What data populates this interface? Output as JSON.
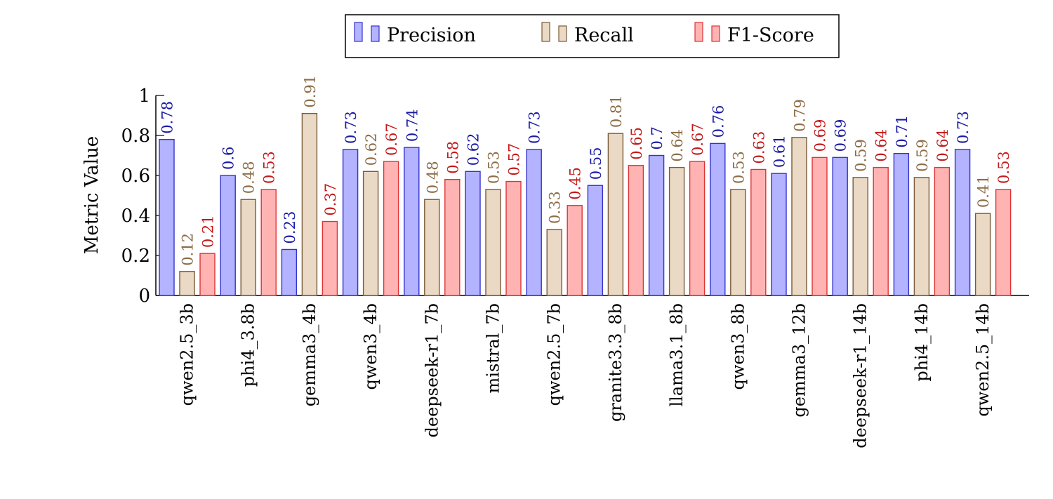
{
  "chart_data": {
    "type": "bar",
    "xlabel": "",
    "ylabel": "Metric Value",
    "ylim": [
      0,
      1
    ],
    "yticks": [
      "0",
      "0.2",
      "0.4",
      "0.6",
      "0.8",
      "1"
    ],
    "legend_position": "top-center",
    "grid": false,
    "categories": [
      "qwen2.5_3b",
      "phi4_3.8b",
      "gemma3_4b",
      "qwen3_4b",
      "deepseek-r1_7b",
      "mistral_7b",
      "qwen2.5_7b",
      "granite3.3_8b",
      "llama3.1_8b",
      "qwen3_8b",
      "gemma3_12b",
      "deepseek-r1_14b",
      "phi4_14b",
      "qwen2.5_14b"
    ],
    "series": [
      {
        "name": "Precision",
        "fill": "#b3b3ff",
        "stroke": "#3333cc",
        "label_color": "#1a1aa6",
        "values": [
          0.78,
          0.6,
          0.23,
          0.73,
          0.74,
          0.62,
          0.73,
          0.55,
          0.7,
          0.76,
          0.61,
          0.69,
          0.71,
          0.73
        ],
        "labels": [
          "0.78",
          "0.6",
          "0.23",
          "0.73",
          "0.74",
          "0.62",
          "0.73",
          "0.55",
          "0.7",
          "0.76",
          "0.61",
          "0.69",
          "0.71",
          "0.73"
        ]
      },
      {
        "name": "Recall",
        "fill": "#ead9c4",
        "stroke": "#7a5a3a",
        "label_color": "#8c6d46",
        "values": [
          0.12,
          0.48,
          0.91,
          0.62,
          0.48,
          0.53,
          0.33,
          0.81,
          0.64,
          0.53,
          0.79,
          0.59,
          0.59,
          0.41
        ],
        "labels": [
          "0.12",
          "0.48",
          "0.91",
          "0.62",
          "0.48",
          "0.53",
          "0.33",
          "0.81",
          "0.64",
          "0.53",
          "0.79",
          "0.59",
          "0.59",
          "0.41"
        ]
      },
      {
        "name": "F1-Score",
        "fill": "#ffb3b3",
        "stroke": "#e03333",
        "label_color": "#c41a1a",
        "values": [
          0.21,
          0.53,
          0.37,
          0.67,
          0.58,
          0.57,
          0.45,
          0.65,
          0.67,
          0.63,
          0.69,
          0.64,
          0.64,
          0.53
        ],
        "labels": [
          "0.21",
          "0.53",
          "0.37",
          "0.67",
          "0.58",
          "0.57",
          "0.45",
          "0.65",
          "0.67",
          "0.63",
          "0.69",
          "0.64",
          "0.64",
          "0.53"
        ]
      }
    ]
  }
}
